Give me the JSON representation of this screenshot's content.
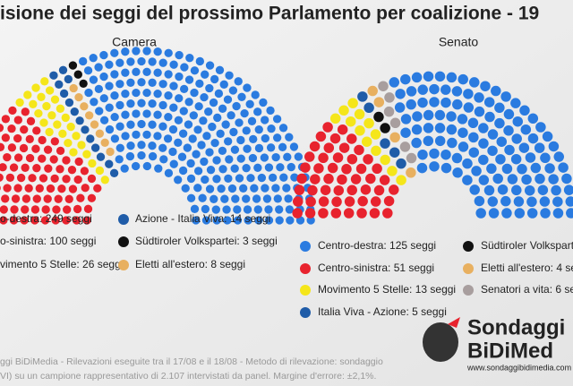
{
  "title": "isione dei seggi del prossimo Parlamento per coalizione - 19",
  "chart_data": [
    {
      "type": "parliament",
      "title": "Camera",
      "labels": [
        "o-sinistra: 100 seggi",
        "vimento 5 Stelle: 26 seggi",
        "Azione - Italia Viva: 14 seggi",
        "Eletti all'estero: 8 seggi",
        "Südtiroler Volkspartei: 3 seggi",
        "o-destra: 249 seggi"
      ],
      "values": [
        100,
        26,
        14,
        8,
        3,
        249
      ],
      "colors": [
        "#e8232e",
        "#f5e61a",
        "#1f5ca8",
        "#e8b060",
        "#111111",
        "#2a7be0"
      ]
    },
    {
      "type": "parliament",
      "title": "Senato",
      "labels": [
        "Centro-sinistra: 51 seggi",
        "Movimento 5 Stelle: 13 seggi",
        "Italia Viva - Azione: 5 seggi",
        "Südtiroler Volkspart",
        "Eletti all'estero: 4 se",
        "Senatori a vita: 6 se",
        "Centro-destra: 125 seggi"
      ],
      "values": [
        51,
        13,
        5,
        2,
        4,
        6,
        125
      ],
      "colors": [
        "#e8232e",
        "#f5e61a",
        "#1f5ca8",
        "#111111",
        "#e8b060",
        "#a89e9e",
        "#2a7be0"
      ]
    }
  ],
  "footer": [
    "ggi BiDiMedia - Rilevazioni eseguite tra il 17/08 e il 18/08 - Metodo di rilevazione: sondaggio",
    "VI) su un campione rappresentativo di 2.107 intervistati da panel. Margine d'errore: ±2,1%."
  ],
  "logo": {
    "line1": "Sondaggi",
    "line2": "BiDiMed",
    "url": "www.sondaggibidimedia.com"
  }
}
